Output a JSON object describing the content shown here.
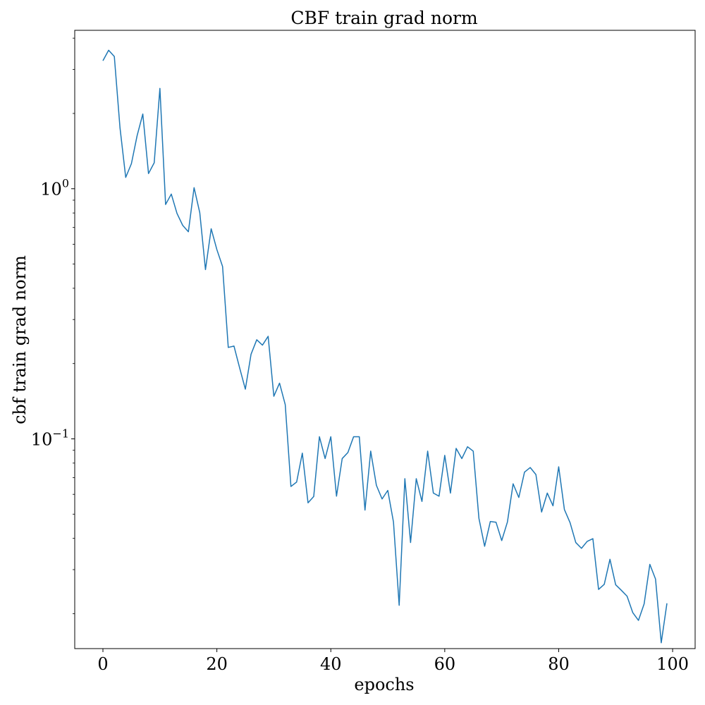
{
  "chart_data": {
    "type": "line",
    "title": "CBF train grad norm",
    "xlabel": "epochs",
    "ylabel": "cbf train grad norm",
    "yscale": "log",
    "xlim": [
      -4.95,
      103.95
    ],
    "ylim": [
      0.0145,
      4.3
    ],
    "xticks": [
      0,
      20,
      40,
      60,
      80,
      100
    ],
    "xtick_labels": [
      "0",
      "20",
      "40",
      "60",
      "80",
      "100"
    ],
    "yticks_major": [
      0.1,
      1
    ],
    "ytick_labels": [
      {
        "base": "10",
        "exp": "−1"
      },
      {
        "base": "10",
        "exp": "0"
      }
    ],
    "grid": false,
    "legend": "none",
    "line_color": "#1f77b4",
    "series": [
      {
        "x": [
          0,
          1,
          2,
          3,
          4,
          5,
          6,
          7,
          8,
          9,
          10,
          11,
          12,
          13,
          14,
          15,
          16,
          17,
          18,
          19,
          20,
          21,
          22,
          23,
          24,
          25,
          26,
          27,
          28,
          29,
          30,
          31,
          32,
          33,
          34,
          35,
          36,
          37,
          38,
          39,
          40,
          41,
          42,
          43,
          44,
          45,
          46,
          47,
          48,
          49,
          50,
          51,
          52,
          53,
          54,
          55,
          56,
          57,
          58,
          59,
          60,
          61,
          62,
          63,
          64,
          65,
          66,
          67,
          68,
          69,
          70,
          71,
          72,
          73,
          74,
          75,
          76,
          77,
          78,
          79,
          80,
          81,
          82,
          83,
          84,
          85,
          86,
          87,
          88,
          89,
          90,
          91,
          92,
          93,
          94,
          95,
          96,
          97,
          98,
          99
        ],
        "values": [
          3.25,
          3.58,
          3.38,
          1.75,
          1.11,
          1.26,
          1.63,
          1.99,
          1.15,
          1.27,
          2.52,
          0.865,
          0.952,
          0.797,
          0.714,
          0.673,
          1.01,
          0.802,
          0.475,
          0.692,
          0.571,
          0.489,
          0.232,
          0.235,
          0.192,
          0.158,
          0.218,
          0.249,
          0.237,
          0.257,
          0.148,
          0.167,
          0.137,
          0.0645,
          0.0672,
          0.0877,
          0.0555,
          0.0588,
          0.102,
          0.0834,
          0.102,
          0.059,
          0.0834,
          0.0882,
          0.102,
          0.102,
          0.0519,
          0.0893,
          0.0652,
          0.0575,
          0.0622,
          0.0465,
          0.0216,
          0.0693,
          0.0385,
          0.0693,
          0.0562,
          0.0893,
          0.0607,
          0.059,
          0.0859,
          0.0607,
          0.0916,
          0.0834,
          0.093,
          0.0893,
          0.0481,
          0.0372,
          0.0467,
          0.0464,
          0.0392,
          0.0465,
          0.0661,
          0.0583,
          0.0736,
          0.0768,
          0.072,
          0.051,
          0.0607,
          0.054,
          0.0773,
          0.0522,
          0.0462,
          0.0385,
          0.0365,
          0.0389,
          0.0399,
          0.025,
          0.0262,
          0.033,
          0.0261,
          0.0248,
          0.0235,
          0.0202,
          0.0188,
          0.0219,
          0.0315,
          0.0275,
          0.0153,
          0.022
        ]
      }
    ]
  }
}
